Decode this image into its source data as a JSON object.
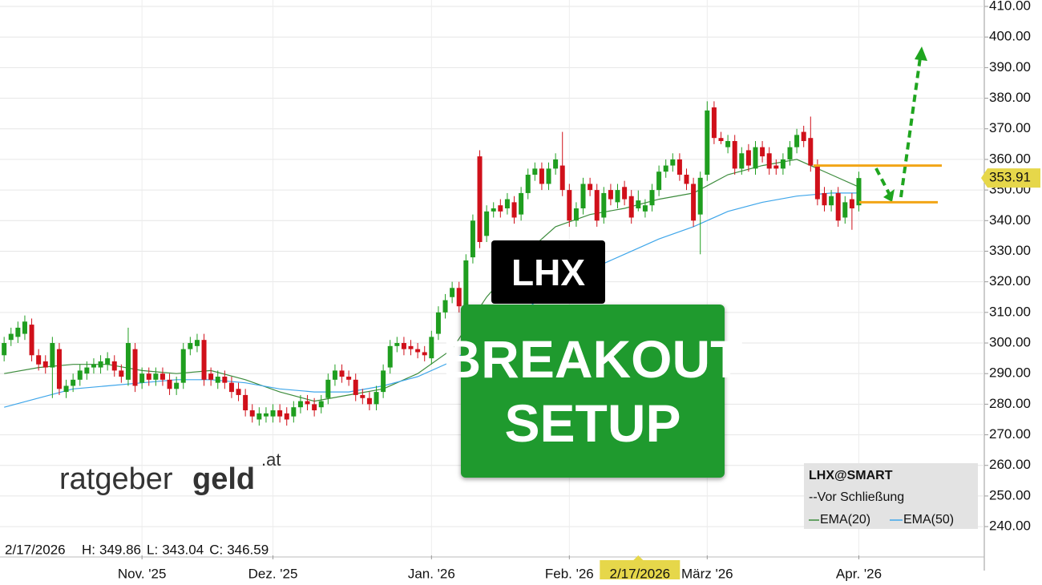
{
  "chart_data": {
    "type": "candlestick",
    "up_color": "#1f9e1f",
    "down_color": "#d0101a",
    "xlim": [
      -0.6,
      142.2
    ],
    "ylim": [
      230.6,
      412.1
    ],
    "grid": true,
    "yticks": [
      {
        "value": 410,
        "label": "410.00"
      },
      {
        "value": 400,
        "label": "400.00"
      },
      {
        "value": 390,
        "label": "390.00"
      },
      {
        "value": 380,
        "label": "380.00"
      },
      {
        "value": 370,
        "label": "370.00"
      },
      {
        "value": 360,
        "label": "360.00"
      },
      {
        "value": 350,
        "label": "350.00"
      },
      {
        "value": 340,
        "label": "340.00"
      },
      {
        "value": 330,
        "label": "330.00"
      },
      {
        "value": 320,
        "label": "320.00"
      },
      {
        "value": 310,
        "label": "310.00"
      },
      {
        "value": 300,
        "label": "300.00"
      },
      {
        "value": 290,
        "label": "290.00"
      },
      {
        "value": 280,
        "label": "280.00"
      },
      {
        "value": 270,
        "label": "270.00"
      },
      {
        "value": 260,
        "label": "260.00"
      },
      {
        "value": 250,
        "label": "250.00"
      },
      {
        "value": 240,
        "label": "240.00"
      }
    ],
    "xticks": [
      {
        "value": 20,
        "label": "Nov. '25"
      },
      {
        "value": 39,
        "label": "Dez. '25"
      },
      {
        "value": 62,
        "label": "Jan. '26"
      },
      {
        "value": 82,
        "label": "Feb. '26"
      },
      {
        "value": 102,
        "label": "März '26"
      },
      {
        "value": 124,
        "label": "Apr. '26"
      }
    ],
    "open": [
      296,
      301,
      302,
      303,
      306,
      296,
      294,
      292,
      298,
      284,
      286,
      288,
      290,
      292,
      292,
      293,
      294,
      291,
      288,
      298,
      287,
      290,
      288,
      290,
      288,
      285,
      287,
      298,
      299,
      301,
      290,
      287,
      289,
      287,
      285,
      283,
      278,
      275,
      276,
      276,
      278,
      277,
      276,
      279,
      281,
      280,
      279,
      282,
      288,
      291,
      289,
      288,
      283,
      282,
      280,
      284,
      292,
      299,
      300,
      299,
      298,
      297,
      295,
      303,
      310,
      315,
      318,
      312,
      328,
      361,
      335,
      343,
      345,
      344,
      346,
      342,
      349,
      355,
      357,
      352,
      357,
      358,
      350,
      340,
      344,
      352,
      350,
      341,
      350,
      346,
      351,
      348,
      344,
      343,
      345,
      350,
      356,
      358,
      360,
      355,
      352,
      342,
      355,
      377,
      367,
      364,
      366,
      357,
      363,
      357,
      364,
      362,
      358,
      357,
      360,
      364,
      369,
      367,
      358,
      349,
      345,
      349,
      341,
      347,
      345
    ],
    "high": [
      302,
      305,
      307,
      309,
      308,
      298,
      296,
      302,
      300,
      288,
      290,
      293,
      294,
      295,
      296,
      297,
      296,
      293,
      305,
      300,
      292,
      292,
      292,
      292,
      290,
      289,
      300,
      302,
      303,
      303,
      292,
      291,
      291,
      289,
      287,
      285,
      280,
      279,
      279,
      280,
      280,
      279,
      281,
      283,
      283,
      282,
      283,
      290,
      293,
      293,
      291,
      290,
      285,
      284,
      286,
      293,
      301,
      302,
      302,
      301,
      300,
      299,
      304,
      312,
      316,
      320,
      320,
      329,
      342,
      363,
      345,
      346,
      347,
      349,
      348,
      351,
      357,
      359,
      359,
      359,
      362,
      369,
      352,
      346,
      354,
      354,
      352,
      351,
      352,
      352,
      353,
      350,
      349.86,
      347,
      352,
      358,
      360,
      362,
      362,
      357,
      354,
      356,
      379,
      379,
      369,
      368,
      368,
      364,
      365,
      366,
      366,
      364,
      360,
      362,
      366,
      370,
      371,
      374,
      360,
      351,
      350,
      351,
      348,
      349,
      356
    ],
    "low": [
      294,
      299,
      300,
      301,
      294,
      291,
      290,
      282,
      283,
      282,
      284,
      286,
      288,
      290,
      290,
      291,
      289,
      287,
      286,
      284,
      285,
      286,
      286,
      286,
      283,
      283,
      285,
      296,
      297,
      286,
      286,
      285,
      285,
      282,
      281,
      276,
      274,
      273,
      274,
      274,
      274,
      273,
      274,
      277,
      278,
      276,
      277,
      280,
      286,
      287,
      286,
      281,
      280,
      278,
      278,
      282,
      290,
      297,
      296,
      296,
      295,
      294,
      293,
      301,
      308,
      313,
      310,
      310,
      326,
      331,
      333,
      341,
      341,
      342,
      339,
      340,
      347,
      353,
      350,
      350,
      355,
      348,
      338,
      338,
      342,
      348,
      338,
      339,
      345,
      344,
      345,
      339,
      343.04,
      341,
      343,
      348,
      354,
      356,
      353,
      350,
      338,
      329,
      353,
      365,
      365,
      362,
      355,
      355,
      356,
      355,
      359,
      355,
      355,
      355,
      358,
      362,
      364,
      356,
      345,
      343,
      343,
      338,
      339,
      337,
      343
    ],
    "close": [
      300,
      303,
      305,
      307,
      296,
      293,
      292,
      300,
      285,
      286,
      288,
      291,
      292,
      293,
      294,
      295,
      291,
      289,
      300,
      286,
      290,
      288,
      290,
      288,
      285,
      287,
      298,
      300,
      301,
      288,
      288,
      289,
      287,
      284,
      283,
      278,
      276,
      277,
      277,
      278,
      276,
      275,
      279,
      281,
      280,
      278,
      281,
      288,
      291,
      289,
      288,
      283,
      282,
      280,
      284,
      291,
      299,
      300,
      298,
      298,
      297,
      296,
      302,
      310,
      314,
      318,
      312,
      327,
      340,
      333,
      343,
      344,
      343,
      347,
      341,
      349,
      355,
      357,
      352,
      357,
      360,
      350,
      340,
      344,
      352,
      350,
      340,
      349,
      347,
      350,
      347,
      341,
      346.59,
      345,
      350,
      356,
      358,
      360,
      355,
      352,
      340,
      354,
      376,
      367,
      366,
      366,
      357,
      362,
      358,
      364,
      361,
      357,
      357,
      360,
      364,
      368,
      366,
      358,
      347,
      345,
      348,
      340,
      346,
      344,
      353.91
    ],
    "series": [
      {
        "name": "EMA(20)",
        "color": "#3d8c3d",
        "x": [
          0,
          5,
          10,
          15,
          20,
          25,
          30,
          35,
          40,
          45,
          50,
          55,
          60,
          65,
          70,
          75,
          80,
          85,
          90,
          95,
          100,
          105,
          110,
          115,
          120,
          124
        ],
        "values": [
          290,
          292,
          293,
          293,
          291,
          290,
          291,
          288,
          284,
          281,
          283,
          285,
          290,
          298,
          315,
          328,
          338,
          342,
          344,
          347,
          349,
          355,
          358,
          360,
          355,
          351
        ]
      },
      {
        "name": "EMA(50)",
        "color": "#3fa6ea",
        "x": [
          0,
          5,
          10,
          15,
          20,
          25,
          30,
          35,
          40,
          45,
          50,
          55,
          60,
          65,
          70,
          75,
          80,
          85,
          90,
          95,
          100,
          105,
          110,
          115,
          120,
          124
        ],
        "values": [
          279,
          282,
          285,
          286,
          287,
          288,
          288,
          287,
          285,
          284,
          284,
          286,
          289,
          294,
          302,
          310,
          318,
          324,
          329,
          334,
          338,
          343,
          346,
          348,
          349,
          349
        ]
      }
    ],
    "levels": [
      {
        "value": 358,
        "color": "#f2a516"
      },
      {
        "value": 346,
        "color": "#f2a516"
      }
    ],
    "crosshair": {
      "date": "2/17/2026",
      "index": 92,
      "readout": [
        "H:",
        "L:",
        "C:"
      ]
    },
    "legend": {
      "title": "LHX@SMART",
      "close_item": "--Vor Schließung"
    },
    "badge": "LHX",
    "banner": [
      "BREAKOUT",
      "SETUP"
    ],
    "logo": [
      "ratgeber",
      "geld",
      ".at"
    ]
  }
}
